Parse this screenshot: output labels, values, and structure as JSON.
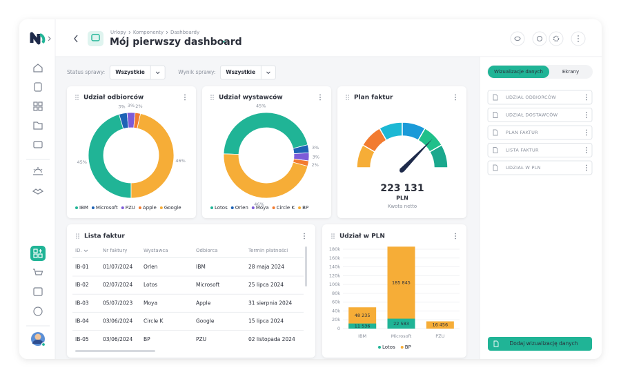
{
  "breadcrumb": [
    "Urlopy",
    "Komponenty",
    "Dashboardy"
  ],
  "title": "Mój pierwszy dashboard",
  "filters": [
    {
      "label": "Status sprawy:",
      "value": "Wszystkie"
    },
    {
      "label": "Wynik sprawy:",
      "value": "Wszystkie"
    }
  ],
  "side_panel": {
    "tabs": [
      "Wizualizacje danych",
      "Ekrany"
    ],
    "items": [
      "UDZIAŁ ODBIORCÓW",
      "UDZIAŁ DOSTAWCÓW",
      "PLAN FAKTUR",
      "LISTA FAKTUR",
      "UDZIAŁ W PLN"
    ],
    "button": "Dodaj wizualizację danych"
  },
  "gauge": {
    "title": "Plan faktur",
    "value": "223 131",
    "unit": "PLN",
    "caption": "Kwota netto"
  },
  "table": {
    "title": "Lista faktur",
    "columns": [
      "ID.",
      "Nr faktury",
      "Wystawca",
      "Odbiorca",
      "Termin płatności"
    ],
    "rows": [
      [
        "IB-01",
        "01/07/2024",
        "Orlen",
        "IBM",
        "28 maja 2024"
      ],
      [
        "IB-02",
        "02/07/2024",
        "Lotos",
        "Microsoft",
        "25 lipca 2024"
      ],
      [
        "IB-03",
        "05/07/2023",
        "Moya",
        "Apple",
        "31 sierpnia 2024"
      ],
      [
        "IB-04",
        "03/06/2024",
        "Circle K",
        "Google",
        "15 lipca 2024"
      ],
      [
        "IB-05",
        "03/06/2024",
        "BP",
        "PZU",
        "02 listopada 2024"
      ]
    ]
  },
  "chart_data": [
    {
      "type": "pie",
      "title": "Udział odbiorców",
      "categories": [
        "IBM",
        "Microsoft",
        "PZU",
        "Apple",
        "Google"
      ],
      "values": [
        45,
        3,
        3,
        2,
        46
      ],
      "value_labels": [
        "45%",
        "3%",
        "3%",
        "2%",
        "46%"
      ],
      "colors": [
        "#20b496",
        "#1e63b5",
        "#7d5bd8",
        "#f27b30",
        "#f6ad37"
      ]
    },
    {
      "type": "pie",
      "title": "Udział wystawców",
      "categories": [
        "Lotos",
        "Orlen",
        "Moya",
        "Circle K",
        "BP"
      ],
      "values": [
        45,
        3,
        3,
        2,
        46
      ],
      "value_labels": [
        "45%",
        "3%",
        "3%",
        "2%",
        "46%"
      ],
      "colors": [
        "#20b496",
        "#1e63b5",
        "#7d5bd8",
        "#f27b30",
        "#f6ad37"
      ]
    },
    {
      "type": "bar",
      "title": "Udział w PLN",
      "categories": [
        "IBM",
        "Microsoft",
        "PZU"
      ],
      "series": [
        {
          "name": "Lotos",
          "color": "#20b496",
          "values": [
            11536,
            22583,
            null
          ],
          "value_labels": [
            "11 536",
            "22 583",
            null
          ]
        },
        {
          "name": "BP",
          "color": "#f6ad37",
          "values": [
            48235,
            185845,
            16456
          ],
          "value_labels": [
            "48 235",
            "185 845",
            "16 456"
          ]
        }
      ],
      "ylim": [
        0,
        180000
      ],
      "yticks": [
        0,
        {
          "value": 20000,
          "label": "20k"
        },
        {
          "value": 40000,
          "label": "40k"
        },
        {
          "value": 60000,
          "label": "60k"
        },
        {
          "value": 80000,
          "label": "80k"
        },
        {
          "value": 100000,
          "label": "100k"
        },
        {
          "value": 120000,
          "label": "120k"
        },
        {
          "value": 140000,
          "label": "140k"
        },
        {
          "value": 160000,
          "label": "160k"
        },
        {
          "value": 180000,
          "label": "180k"
        }
      ],
      "grid": true
    }
  ]
}
